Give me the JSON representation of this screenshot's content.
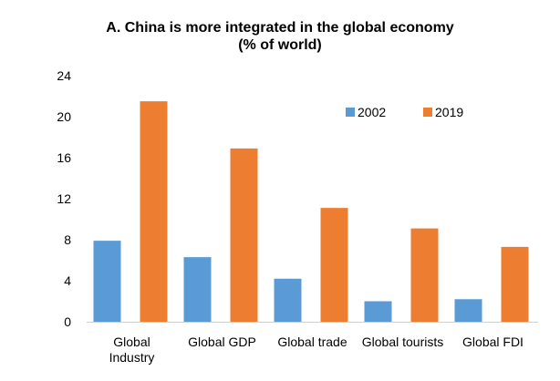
{
  "chart_data": {
    "type": "bar",
    "title_line1": "A. China is more integrated in the global economy",
    "title_line2": "(% of world)",
    "categories": [
      [
        "Global",
        "Industry"
      ],
      [
        "Global GDP"
      ],
      [
        "Global trade"
      ],
      [
        "Global tourists"
      ],
      [
        "Global FDI"
      ]
    ],
    "series": [
      {
        "name": "2002",
        "color": "#5b9bd5",
        "values": [
          7.9,
          6.3,
          4.2,
          2.0,
          2.2
        ]
      },
      {
        "name": "2019",
        "color": "#ed7d31",
        "values": [
          21.5,
          16.9,
          11.1,
          9.1,
          7.3
        ]
      }
    ],
    "ylim": [
      0,
      24
    ],
    "yticks": [
      "0",
      "4",
      "8",
      "12",
      "16",
      "20",
      "24"
    ],
    "legend_position": "top-right",
    "grid": false
  }
}
